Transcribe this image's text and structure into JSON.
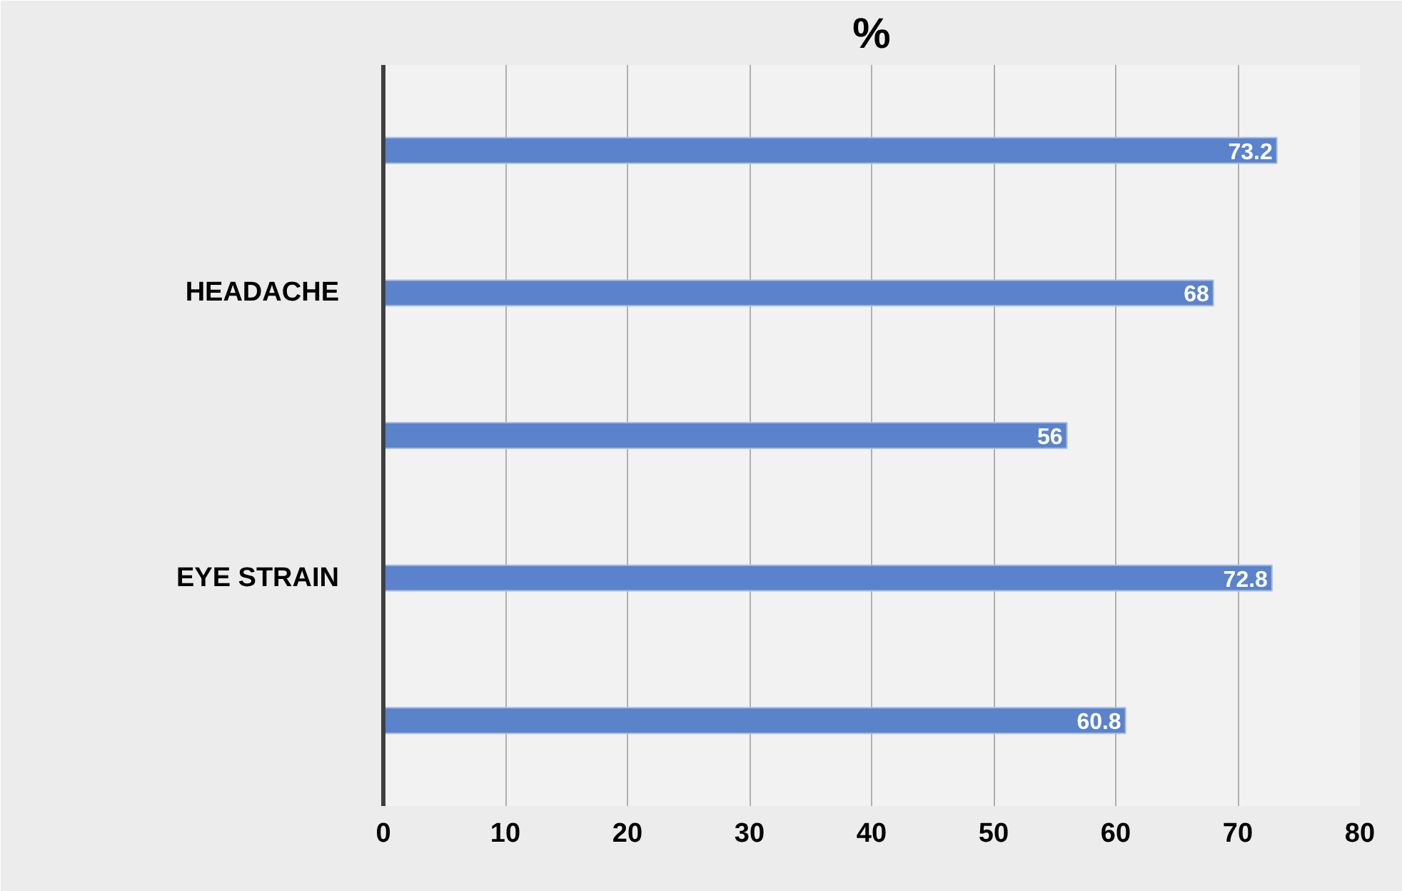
{
  "chart_data": {
    "type": "bar",
    "orientation": "horizontal",
    "title": "%",
    "categories": [
      null,
      "HEADACHE",
      null,
      "EYE STRAIN",
      null
    ],
    "values": [
      73.2,
      68,
      56,
      72.8,
      60.8
    ],
    "color": "#5b83cc",
    "data_labels": true,
    "xlim": [
      0,
      80
    ],
    "xticks": [
      0,
      10,
      20,
      30,
      40,
      50,
      60,
      70,
      80
    ],
    "grid": "x"
  }
}
